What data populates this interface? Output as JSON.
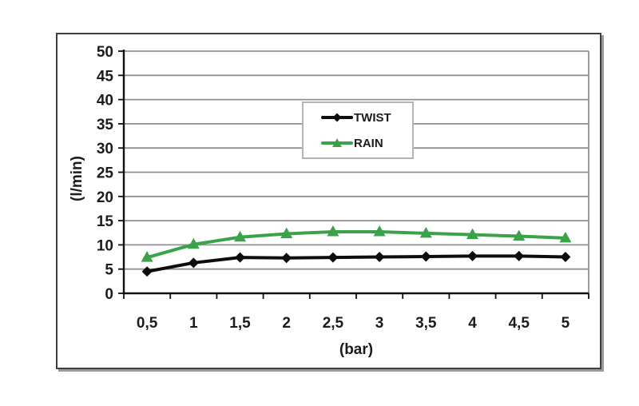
{
  "chart_data": {
    "type": "line",
    "title": "",
    "xlabel": "(bar)",
    "ylabel": "(l/min)",
    "categories": [
      "0,5",
      "1",
      "1,5",
      "2",
      "2,5",
      "3",
      "3,5",
      "4",
      "4,5",
      "5"
    ],
    "x_values": [
      0.5,
      1,
      1.5,
      2,
      2.5,
      3,
      3.5,
      4,
      4.5,
      5
    ],
    "ylim": [
      0,
      50
    ],
    "y_ticks": [
      0,
      5,
      10,
      15,
      20,
      25,
      30,
      35,
      40,
      45,
      50
    ],
    "grid": true,
    "legend_position": "upper-center",
    "series": [
      {
        "name": "TWIST",
        "marker": "diamond",
        "color": "#0d0d0d",
        "values": [
          4.5,
          6.3,
          7.4,
          7.3,
          7.4,
          7.5,
          7.6,
          7.7,
          7.7,
          7.5
        ]
      },
      {
        "name": "RAIN",
        "marker": "triangle",
        "color": "#3aa349",
        "values": [
          7.4,
          10.1,
          11.6,
          12.3,
          12.7,
          12.7,
          12.4,
          12.1,
          11.8,
          11.4
        ]
      }
    ]
  },
  "colors": {
    "background": "#ffffff",
    "frame_border": "#3f3f3f",
    "grid": "#919191",
    "axis": "#111111",
    "text": "#1c1c1c",
    "legend_border": "#b5b5b5"
  }
}
